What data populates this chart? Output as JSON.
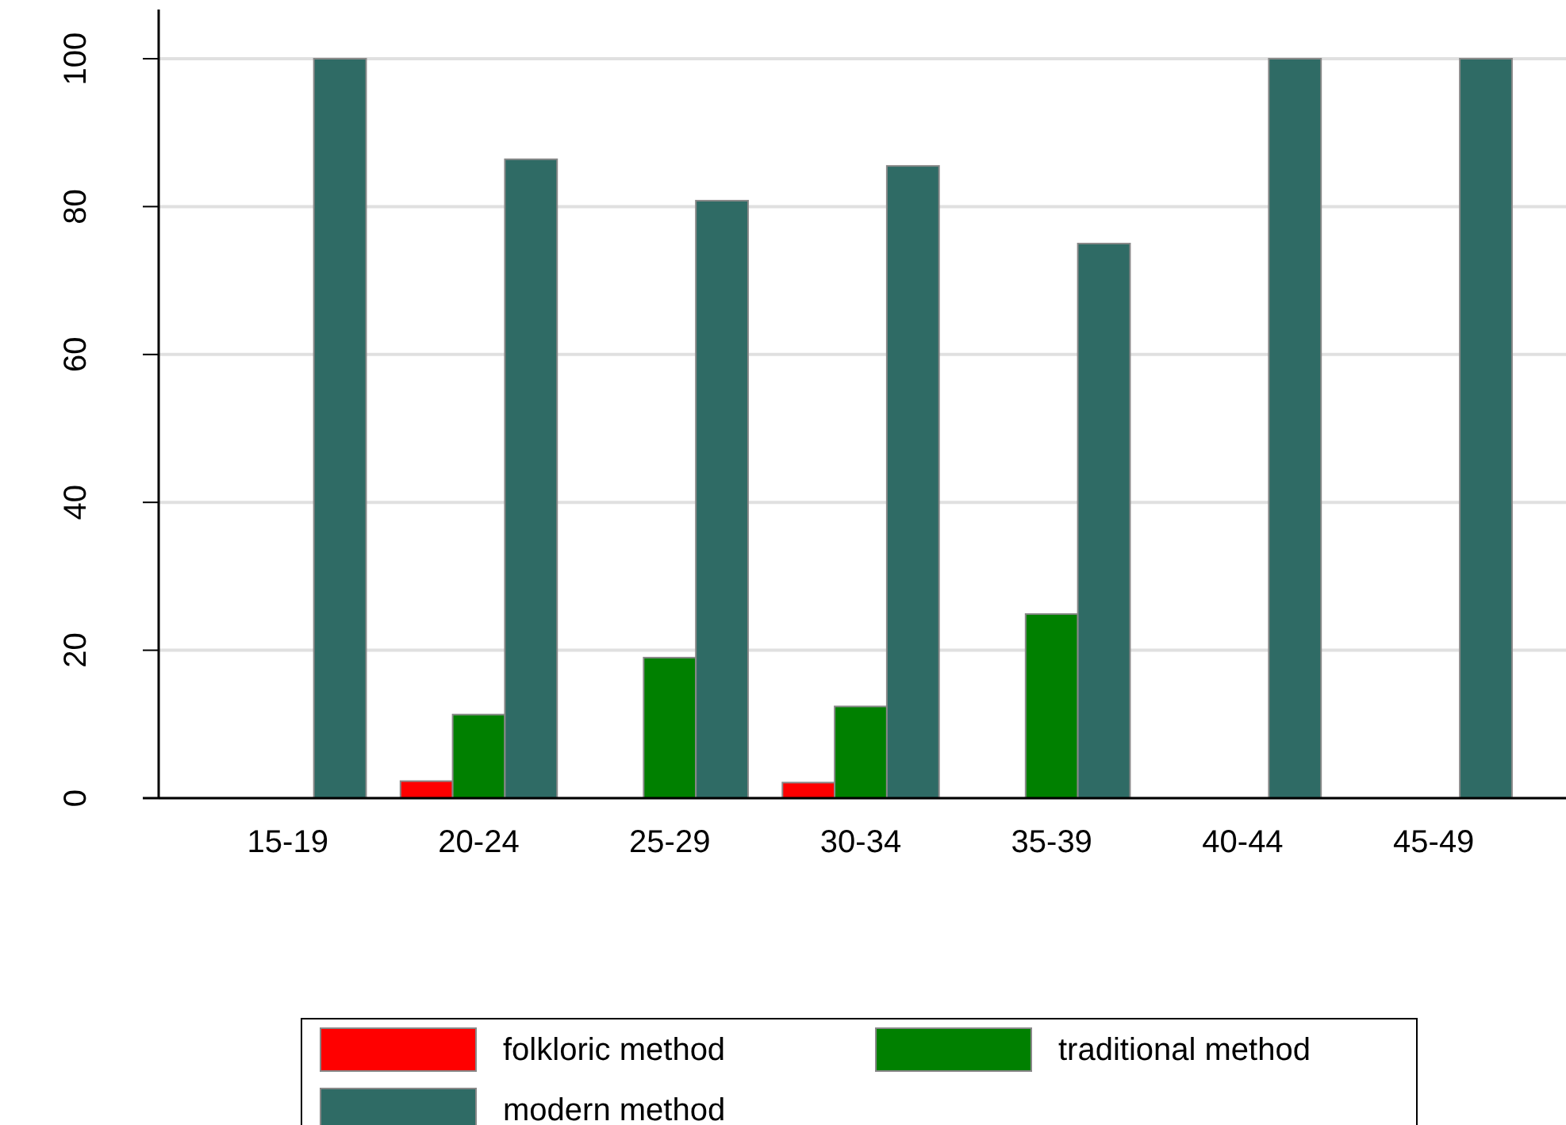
{
  "chart_data": {
    "type": "bar",
    "categories": [
      "15-19",
      "20-24",
      "25-29",
      "30-34",
      "35-39",
      "40-44",
      "45-49"
    ],
    "series": [
      {
        "name": "folkloric method",
        "color": "#ff0000",
        "values": [
          null,
          2.3,
          null,
          2.1,
          null,
          null,
          null
        ]
      },
      {
        "name": "traditional method",
        "color": "#008000",
        "values": [
          null,
          11.3,
          19.0,
          12.4,
          24.9,
          null,
          null
        ]
      },
      {
        "name": "modern method",
        "color": "#2f6b65",
        "values": [
          100,
          86.4,
          80.8,
          85.5,
          75.0,
          100,
          100
        ]
      }
    ],
    "ylim": [
      0,
      100
    ],
    "yticks": [
      0,
      20,
      40,
      60,
      80,
      100
    ],
    "grid": "y",
    "legend": "bottom"
  }
}
